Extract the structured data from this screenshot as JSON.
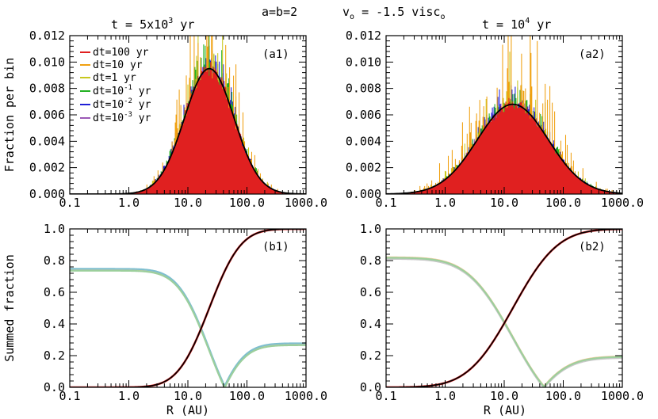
{
  "header": {
    "params": "a=b=2",
    "velocity_lead": "v",
    "velocity_sub": "o",
    "velocity_eq": " = -1.5 visc",
    "velocity_tail_sub": "o"
  },
  "chart_data": [
    {
      "id": "a1",
      "type": "bar",
      "panel_label": "(a1)",
      "title_prefix": "t = 5x10",
      "title_exp": "3",
      "title_suffix": " yr",
      "ylabel": "Fraction per bin",
      "xlabel": "",
      "xscale": "log",
      "xlim": [
        0.1,
        1000.0
      ],
      "ylim": [
        0.0,
        0.012
      ],
      "xticks": [
        "0.1",
        "1.0",
        "10.0",
        "100.0",
        "1000.0"
      ],
      "yticks": [
        "0.000",
        "0.002",
        "0.004",
        "0.006",
        "0.008",
        "0.010",
        "0.012"
      ],
      "curve": {
        "name": "fit",
        "color": "#000000",
        "peak_R": 23,
        "peak_value": 0.0095,
        "log_sigma": 0.42
      },
      "series": [
        {
          "name": "dt=10⁻³ yr",
          "color": "#9b59b6",
          "scatter": 0.08,
          "peak_scale": 1.0
        },
        {
          "name": "dt=10⁻² yr",
          "color": "#1f1fd6",
          "scatter": 0.16,
          "peak_scale": 1.03
        },
        {
          "name": "dt=10⁻¹ yr",
          "color": "#22b022",
          "scatter": 0.26,
          "peak_scale": 1.0
        },
        {
          "name": "dt=1 yr",
          "color": "#c8c81e",
          "scatter": 0.55,
          "peak_scale": 0.82
        },
        {
          "name": "dt=10 yr",
          "color": "#f0a010",
          "scatter": 0.65,
          "peak_scale": 1.12
        },
        {
          "name": "dt=100 yr",
          "color": "#e02020",
          "scatter": 0.05,
          "peak_scale": 1.0
        }
      ],
      "legend": {
        "position": "top-left",
        "entries": [
          {
            "label": "dt=100 yr",
            "color": "#e02020"
          },
          {
            "label": "dt=10 yr",
            "color": "#f0a010"
          },
          {
            "label": "dt=1 yr",
            "color": "#c8c81e"
          },
          {
            "label_base": "dt=10",
            "label_exp": "-1",
            "label_unit": " yr",
            "color": "#22b022"
          },
          {
            "label_base": "dt=10",
            "label_exp": "-2",
            "label_unit": " yr",
            "color": "#1f1fd6"
          },
          {
            "label_base": "dt=10",
            "label_exp": "-3",
            "label_unit": " yr",
            "color": "#9b59b6"
          }
        ]
      }
    },
    {
      "id": "a2",
      "type": "bar",
      "panel_label": "(a2)",
      "title_prefix": "t = 10",
      "title_exp": "4",
      "title_suffix": " yr",
      "ylabel": "",
      "xlabel": "",
      "xscale": "log",
      "xlim": [
        0.1,
        1000.0
      ],
      "ylim": [
        0.0,
        0.012
      ],
      "xticks": [
        "0.1",
        "1.0",
        "10.0",
        "100.0",
        "1000.0"
      ],
      "yticks": [
        "0.000",
        "0.002",
        "0.004",
        "0.006",
        "0.008",
        "0.010",
        "0.012"
      ],
      "curve": {
        "name": "fit",
        "color": "#000000",
        "peak_R": 14,
        "peak_value": 0.0068,
        "log_sigma": 0.6
      },
      "series": [
        {
          "name": "dt=10⁻³ yr",
          "color": "#9b59b6",
          "scatter": 0.08,
          "peak_scale": 1.0
        },
        {
          "name": "dt=10⁻² yr",
          "color": "#1f1fd6",
          "scatter": 0.14,
          "peak_scale": 1.02
        },
        {
          "name": "dt=10⁻¹ yr",
          "color": "#22b022",
          "scatter": 0.24,
          "peak_scale": 0.98
        },
        {
          "name": "dt=1 yr",
          "color": "#c8c81e",
          "scatter": 0.5,
          "peak_scale": 0.85
        },
        {
          "name": "dt=10 yr",
          "color": "#f0a010",
          "scatter": 0.7,
          "peak_scale": 1.18
        },
        {
          "name": "dt=100 yr",
          "color": "#e02020",
          "scatter": 0.05,
          "peak_scale": 1.0
        }
      ]
    },
    {
      "id": "b1",
      "type": "line",
      "panel_label": "(b1)",
      "ylabel": "Summed fraction",
      "xlabel": "R (AU)",
      "xscale": "log",
      "xlim": [
        0.1,
        1000.0
      ],
      "ylim": [
        0.0,
        1.0
      ],
      "xticks": [
        "0.1",
        "1.0",
        "10.0",
        "100.0",
        "1000.0"
      ],
      "yticks": [
        "0.0",
        "0.2",
        "0.4",
        "0.6",
        "0.8",
        "1.0"
      ],
      "rising": {
        "center_R": 23,
        "log_sigma": 0.42,
        "color": "#000000",
        "overlay_color": "#e02020"
      },
      "falling": {
        "start_value": 0.74,
        "end_value": 0.27,
        "min_R": 40
      },
      "series": [
        {
          "name": "dt=100 yr",
          "color": "#f4a3a3",
          "offset": 0.0
        },
        {
          "name": "dt=10 yr",
          "color": "#f5c99a",
          "offset": 0.004
        },
        {
          "name": "dt=1 yr",
          "color": "#7fbfcf",
          "offset": 0.008
        },
        {
          "name": "dt=10⁻¹ yr",
          "color": "#9ccf9c",
          "offset": -0.004
        }
      ]
    },
    {
      "id": "b2",
      "type": "line",
      "panel_label": "(b2)",
      "ylabel": "",
      "xlabel": "R (AU)",
      "xscale": "log",
      "xlim": [
        0.1,
        1000.0
      ],
      "ylim": [
        0.0,
        1.0
      ],
      "xticks": [
        "0.1",
        "1.0",
        "10.0",
        "100.0",
        "1000.0"
      ],
      "yticks": [
        "0.0",
        "0.2",
        "0.4",
        "0.6",
        "0.8",
        "1.0"
      ],
      "rising": {
        "center_R": 14,
        "log_sigma": 0.6,
        "color": "#000000",
        "overlay_color": "#e02020"
      },
      "falling": {
        "start_value": 0.815,
        "end_value": 0.19,
        "min_R": 40
      },
      "series": [
        {
          "name": "dt=100 yr",
          "color": "#f4a3a3",
          "offset": 0.0
        },
        {
          "name": "dt=10 yr",
          "color": "#f5c99a",
          "offset": 0.006
        },
        {
          "name": "dt=1 yr",
          "color": "#c8c8c8",
          "offset": -0.004
        },
        {
          "name": "dt=10⁻¹ yr",
          "color": "#9ccf9c",
          "offset": 0.003
        }
      ]
    }
  ]
}
